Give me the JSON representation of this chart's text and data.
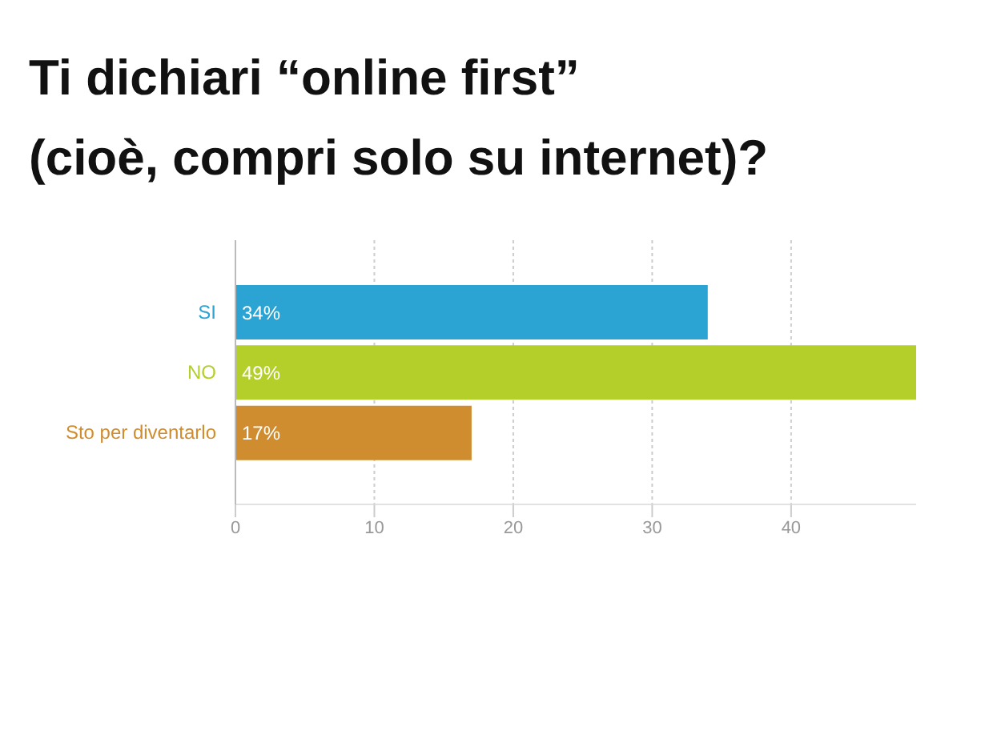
{
  "chart_data": {
    "type": "bar",
    "orientation": "horizontal",
    "title": "Ti dichiari “online first”\n(cioè, compri solo su internet)?",
    "categories": [
      "SI",
      "NO",
      "Sto per diventarlo"
    ],
    "values": [
      34,
      49,
      17
    ],
    "colors": [
      "#2ba3d3",
      "#b5cf2a",
      "#d08d2f"
    ],
    "value_labels": [
      "34%",
      "49%",
      "17%"
    ],
    "xlim": [
      0,
      49
    ],
    "xticks": [
      0,
      10,
      20,
      30,
      40
    ],
    "grid": "x"
  }
}
